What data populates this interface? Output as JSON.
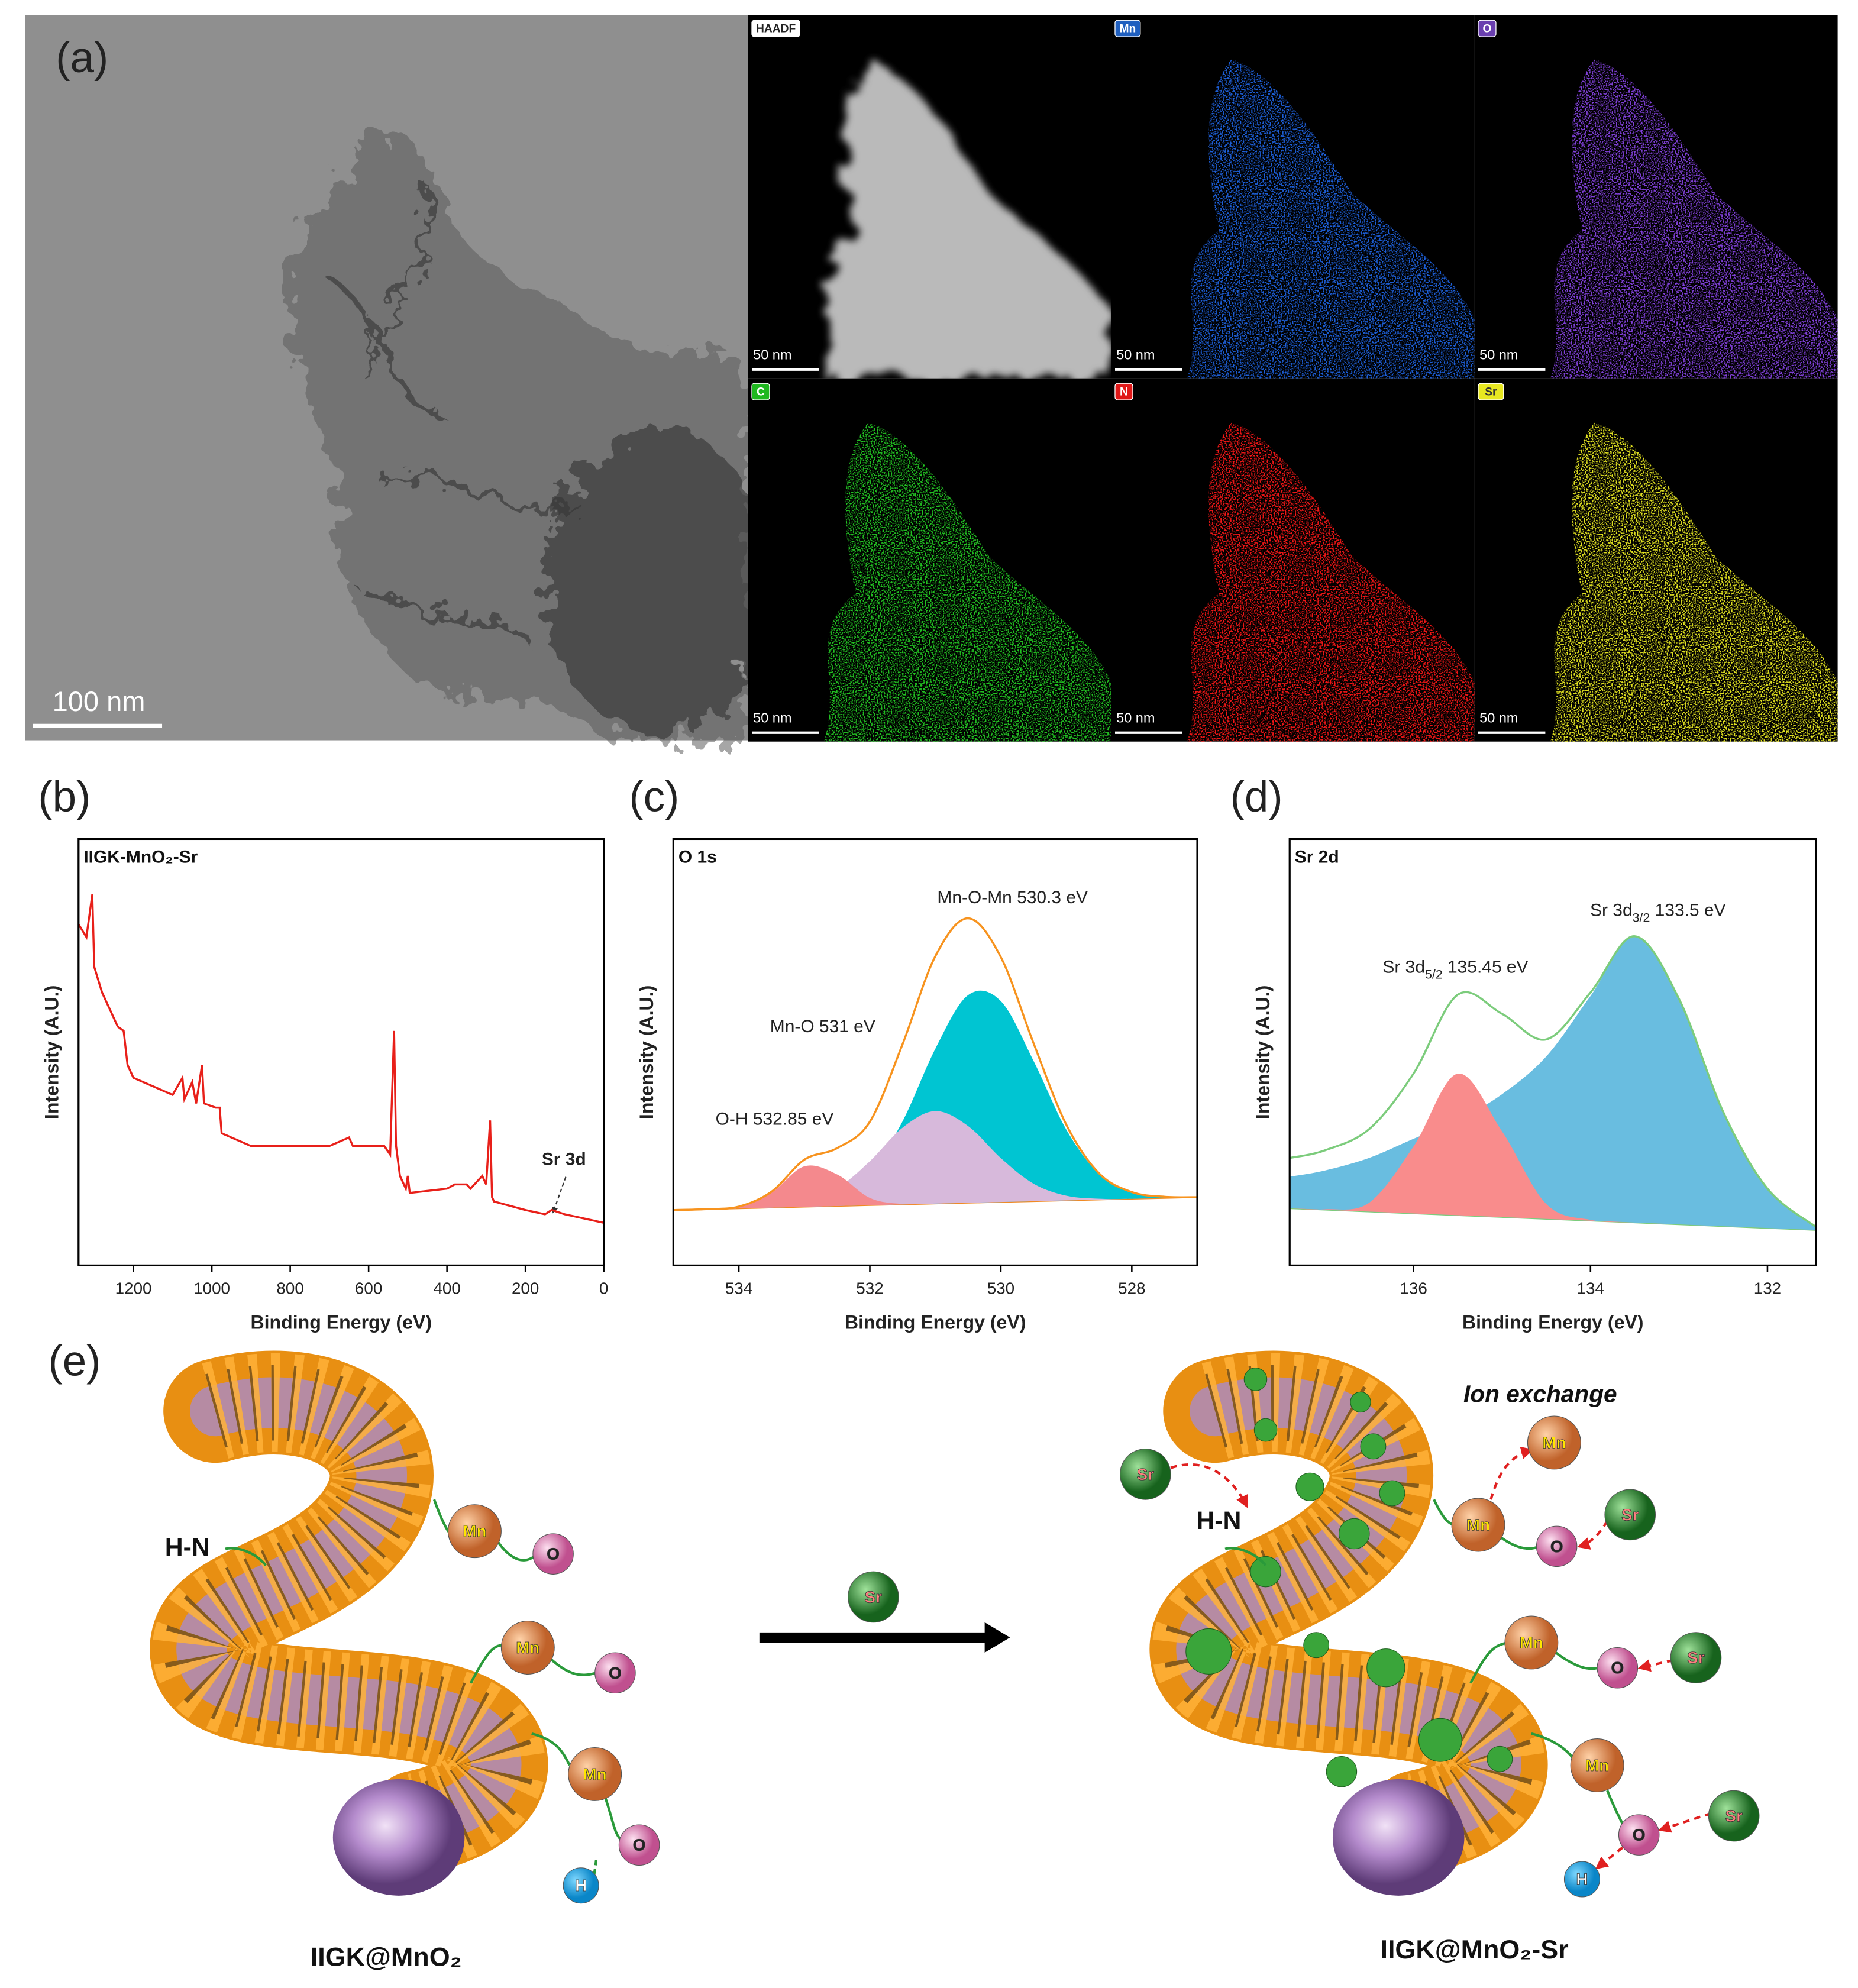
{
  "panel_labels": [
    "(a)",
    "(b)",
    "(c)",
    "(d)",
    "(e)"
  ],
  "tem": {
    "scale_bar": "100 nm"
  },
  "eds": {
    "maps": [
      {
        "label": "HAADF",
        "scale_bar": "50 nm"
      },
      {
        "label": "Mn",
        "scale_bar": "50 nm"
      },
      {
        "label": "O",
        "scale_bar": "50 nm"
      },
      {
        "label": "C",
        "scale_bar": "50 nm"
      },
      {
        "label": "N",
        "scale_bar": "50 nm"
      },
      {
        "label": "Sr",
        "scale_bar": "50 nm"
      }
    ]
  },
  "chart_data": [
    {
      "type": "line",
      "title": "IIGK-MnO₂-Sr",
      "x_label": "Binding Energy (eV)",
      "y_label": "Intensity (A.U.)",
      "smooth": false,
      "x": [
        1340,
        1320,
        1305,
        1300,
        1280,
        1240,
        1225,
        1215,
        1200,
        1150,
        1100,
        1075,
        1070,
        1050,
        1040,
        1025,
        1020,
        990,
        980,
        975,
        900,
        800,
        700,
        650,
        640,
        600,
        560,
        545,
        535,
        530,
        520,
        505,
        500,
        495,
        400,
        380,
        350,
        340,
        310,
        300,
        290,
        285,
        280,
        200,
        150,
        133,
        100,
        50,
        0
      ],
      "series": [
        {
          "color": "#e8201a",
          "values": [
            80,
            77,
            87,
            70,
            64,
            56,
            55,
            47,
            44,
            42,
            40,
            44,
            39,
            43,
            38,
            47,
            38,
            37,
            37,
            31,
            28,
            28,
            28,
            30,
            28,
            28,
            28,
            26,
            55,
            28,
            21,
            18,
            21,
            17,
            18,
            19,
            19,
            18,
            21,
            19,
            34,
            16,
            15,
            13,
            12,
            13,
            12,
            11,
            10
          ]
        }
      ],
      "xlim": [
        1340,
        0
      ],
      "xticks": [
        1200,
        1000,
        800,
        600,
        400,
        200,
        0
      ],
      "ylim": [
        0,
        100
      ],
      "annotations": [
        "Sr 3d"
      ]
    },
    {
      "type": "line",
      "title": "O 1s",
      "x_label": "Binding Energy (eV)",
      "y_label": "Intensity (A.U.)",
      "smooth": true,
      "x": [
        535,
        534.5,
        534,
        533.5,
        533,
        532.5,
        532,
        531.5,
        531,
        530.5,
        530,
        529.5,
        529,
        528.5,
        528,
        527.5,
        527
      ],
      "series": [
        {
          "color": "#f08a24",
          "values": [
            13.0,
            13.19,
            13.38,
            13.56,
            13.75,
            13.94,
            14.13,
            14.31,
            14.5,
            14.69,
            14.88,
            15.06,
            15.25,
            15.44,
            15.63,
            15.81,
            16.0
          ]
        },
        {
          "color": "#00c5d2",
          "fill": true,
          "values": [
            0,
            0,
            0,
            0.06,
            0.4,
            2.1,
            7.6,
            19.5,
            36.3,
            48.7,
            47.1,
            32.9,
            16.6,
            6.0,
            1.6,
            0.3,
            0
          ]
        },
        {
          "color": "#d7b9db",
          "fill": true,
          "values": [
            0,
            0,
            0.03,
            0.2,
            1.1,
            4.1,
            10.3,
            18.0,
            21.7,
            18.0,
            10.3,
            4.1,
            1.1,
            0.2,
            0,
            0,
            0
          ]
        },
        {
          "color": "#f4898d",
          "fill": true,
          "values": [
            0,
            0.01,
            0.4,
            3.5,
            9.5,
            7.4,
            1.7,
            0.1,
            0,
            0,
            0,
            0,
            0,
            0,
            0,
            0,
            0
          ]
        },
        {
          "color": "#f7931e",
          "values": [
            13.0,
            13.2,
            13.8,
            17.3,
            24.8,
            27.5,
            33.7,
            51.9,
            72.5,
            81.4,
            72.3,
            52.1,
            33.0,
            21.6,
            17.2,
            16.1,
            16.0
          ]
        }
      ],
      "xlim": [
        535,
        527
      ],
      "xticks": [
        534,
        532,
        530,
        528
      ],
      "ylim": [
        0,
        100
      ],
      "annotations": [
        "Mn-O-Mn 530.3 eV",
        "Mn-O 531 eV",
        "O-H 532.85 eV"
      ]
    },
    {
      "type": "line",
      "title": "Sr 2d",
      "x_label": "Binding Energy (eV)",
      "y_label": "Intensity (A.U.)",
      "smooth": true,
      "x": [
        137.4,
        137,
        136.5,
        136,
        135.5,
        135,
        134.5,
        134,
        133.5,
        133,
        132.5,
        132,
        131.45
      ],
      "series": [
        {
          "color": "#7ccc7c",
          "values": [
            13.4,
            13.06,
            12.63,
            12.2,
            11.77,
            11.34,
            10.91,
            10.49,
            10.06,
            9.63,
            9.2,
            8.77,
            8.3
          ]
        },
        {
          "color": "#69bde0",
          "fill": true,
          "values": [
            7.4,
            9.2,
            12.6,
            17.5,
            22.3,
            28.8,
            38.1,
            52.7,
            67.1,
            52.7,
            26.4,
            9.0,
            0.6
          ]
        },
        {
          "color": "#f98c8c",
          "fill": true,
          "values": [
            0,
            0.1,
            2.1,
            15.7,
            33.2,
            20.1,
            3.5,
            0.2,
            0,
            0,
            0,
            0,
            0
          ]
        },
        {
          "color": "#7ccc7c",
          "values": [
            25.2,
            27,
            32,
            45,
            63.5,
            59,
            53,
            64,
            77.2,
            62.5,
            36,
            18,
            9
          ]
        }
      ],
      "xlim": [
        137.4,
        131.45
      ],
      "xticks": [
        136,
        134,
        132
      ],
      "ylim": [
        0,
        100
      ],
      "annotations": [
        {
          "text": "Sr 3d",
          "sub": "5/2",
          "tail": " 135.45 eV"
        },
        {
          "text": "Sr 3d",
          "sub": "3/2",
          "tail": " 133.5 eV"
        }
      ]
    }
  ],
  "diagram": {
    "left": {
      "bond": "H-N",
      "spheres": [
        "Mn",
        "O",
        "Mn",
        "O",
        "Mn",
        "O",
        "H"
      ],
      "caption": "IIGK@MnO₂"
    },
    "reagent": "Sr",
    "right": {
      "bond": "H-N",
      "title": "Ion exchange",
      "spheres": [
        "Sr",
        "Mn",
        "Mn",
        "O",
        "Sr",
        "Mn",
        "O",
        "Sr",
        "Mn",
        "O",
        "Sr",
        "H"
      ],
      "caption": "IIGK@MnO₂-Sr"
    }
  }
}
